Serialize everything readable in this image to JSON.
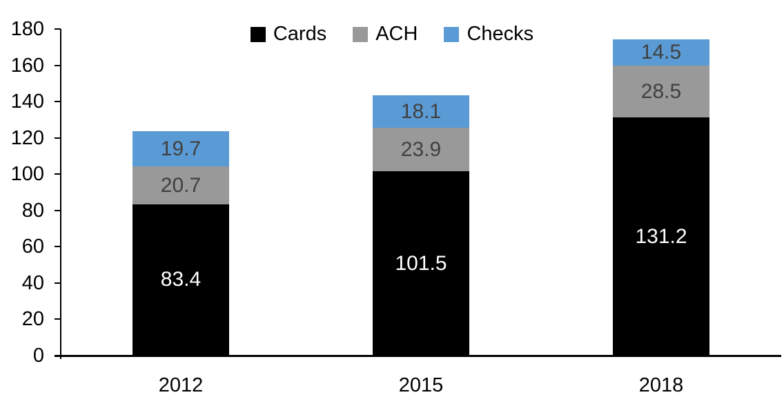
{
  "chart_data": {
    "type": "bar",
    "stacked": true,
    "title": "",
    "xlabel": "",
    "ylabel": "",
    "categories": [
      "2012",
      "2015",
      "2018"
    ],
    "series": [
      {
        "name": "Cards",
        "color": "#000000",
        "label_color": "#ffffff",
        "values": [
          83.4,
          101.5,
          131.2
        ]
      },
      {
        "name": "ACH",
        "color": "#999999",
        "label_color": "#404040",
        "values": [
          20.7,
          23.9,
          28.5
        ]
      },
      {
        "name": "Checks",
        "color": "#5b9bd5",
        "label_color": "#404040",
        "values": [
          19.7,
          18.1,
          14.5
        ]
      }
    ],
    "ylim": [
      0,
      180
    ],
    "ytick_step": 20,
    "ytick_labels": [
      "0",
      "20",
      "40",
      "60",
      "80",
      "100",
      "120",
      "140",
      "160",
      "180"
    ],
    "grid": false,
    "legend_position": "top",
    "axis_color": "#000000",
    "background_color": "#ffffff"
  }
}
